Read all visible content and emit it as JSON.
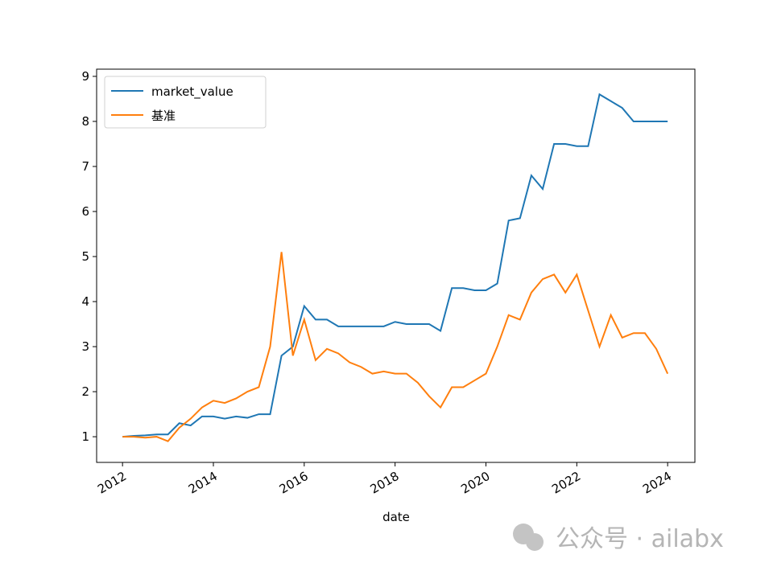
{
  "chart_data": {
    "type": "line",
    "x_label": "date",
    "x": [
      2012.0,
      2012.25,
      2012.5,
      2012.75,
      2013.0,
      2013.25,
      2013.5,
      2013.75,
      2014.0,
      2014.25,
      2014.5,
      2014.75,
      2015.0,
      2015.25,
      2015.5,
      2015.75,
      2016.0,
      2016.25,
      2016.5,
      2016.75,
      2017.0,
      2017.25,
      2017.5,
      2017.75,
      2018.0,
      2018.25,
      2018.5,
      2018.75,
      2019.0,
      2019.25,
      2019.5,
      2019.75,
      2020.0,
      2020.25,
      2020.5,
      2020.75,
      2021.0,
      2021.25,
      2021.5,
      2021.75,
      2022.0,
      2022.25,
      2022.5,
      2022.75,
      2023.0,
      2023.25,
      2023.5,
      2023.75,
      2024.0
    ],
    "series": [
      {
        "name": "market_value",
        "color": "#1f77b4",
        "values": [
          1.0,
          1.02,
          1.03,
          1.05,
          1.05,
          1.3,
          1.25,
          1.45,
          1.45,
          1.4,
          1.45,
          1.42,
          1.5,
          1.5,
          2.8,
          3.0,
          3.9,
          3.6,
          3.6,
          3.45,
          3.45,
          3.45,
          3.45,
          3.45,
          3.55,
          3.5,
          3.5,
          3.5,
          3.35,
          4.3,
          4.3,
          4.25,
          4.25,
          4.4,
          5.8,
          5.85,
          6.8,
          6.5,
          7.5,
          7.5,
          7.45,
          7.45,
          8.6,
          8.45,
          8.3,
          8.0,
          8.0,
          8.0,
          8.0
        ]
      },
      {
        "name": "基准",
        "color": "#ff7f0e",
        "values": [
          1.0,
          1.0,
          0.98,
          1.0,
          0.9,
          1.2,
          1.4,
          1.65,
          1.8,
          1.75,
          1.85,
          2.0,
          2.1,
          3.0,
          5.1,
          2.8,
          3.6,
          2.7,
          2.95,
          2.85,
          2.65,
          2.55,
          2.4,
          2.45,
          2.4,
          2.4,
          2.2,
          1.9,
          1.65,
          2.1,
          2.1,
          2.25,
          2.4,
          3.0,
          3.7,
          3.6,
          4.2,
          4.5,
          4.6,
          4.2,
          4.6,
          3.8,
          3.0,
          3.7,
          3.2,
          3.3,
          3.3,
          2.95,
          2.4
        ]
      }
    ],
    "xlim": [
      2011.43,
      2024.6
    ],
    "xticks": [
      2012,
      2014,
      2016,
      2018,
      2020,
      2022,
      2024
    ],
    "ylim": [
      0.43,
      9.16
    ],
    "yticks": [
      1,
      2,
      3,
      4,
      5,
      6,
      7,
      8,
      9
    ],
    "legend": "upper-left",
    "grid": false
  },
  "watermark": "公众号 · ailabx"
}
